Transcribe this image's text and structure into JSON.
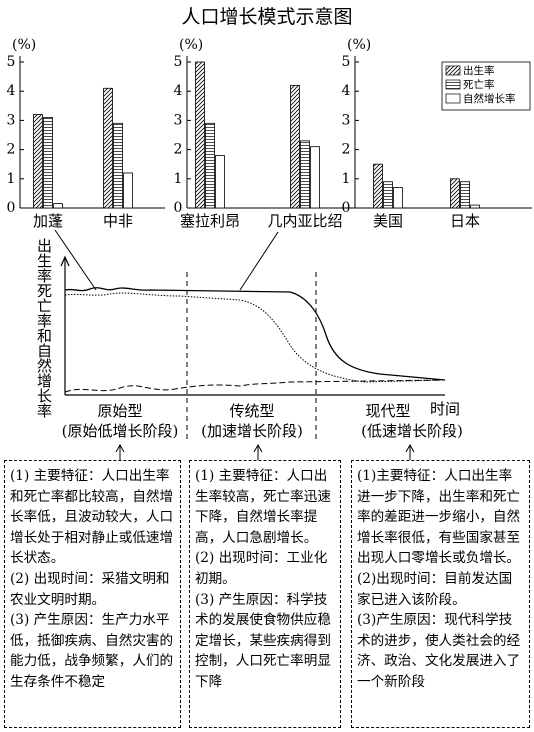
{
  "title": "人口增长模式示意图",
  "chart_data": [
    {
      "type": "bar",
      "ylabel": "(%)",
      "ylim": [
        0,
        5
      ],
      "yticks": [
        0,
        1,
        2,
        3,
        4,
        5
      ],
      "categories": [
        "加蓬",
        "中非"
      ],
      "series": [
        {
          "pattern": "diagonal",
          "values": [
            3.2,
            4.1
          ]
        },
        {
          "pattern": "horizontal",
          "values": [
            3.1,
            2.9
          ]
        },
        {
          "pattern": "none",
          "values": [
            0.15,
            1.2
          ]
        }
      ]
    },
    {
      "type": "bar",
      "ylabel": "(%)",
      "ylim": [
        0,
        5
      ],
      "yticks": [
        0,
        1,
        2,
        3,
        4,
        5
      ],
      "categories": [
        "塞拉利昂",
        "几内亚比绍"
      ],
      "series": [
        {
          "pattern": "diagonal",
          "values": [
            5.0,
            4.2
          ]
        },
        {
          "pattern": "horizontal",
          "values": [
            2.9,
            2.3
          ]
        },
        {
          "pattern": "none",
          "values": [
            1.8,
            2.1
          ]
        }
      ]
    },
    {
      "type": "bar",
      "ylabel": "(%)",
      "ylim": [
        0,
        5
      ],
      "yticks": [
        0,
        1,
        2,
        3,
        4,
        5
      ],
      "categories": [
        "美国",
        "日本"
      ],
      "legend": "top-right",
      "series": [
        {
          "name": "出生率",
          "pattern": "diagonal",
          "values": [
            1.5,
            1.0
          ]
        },
        {
          "name": "死亡率",
          "pattern": "horizontal",
          "values": [
            0.9,
            0.9
          ]
        },
        {
          "name": "自然增长率",
          "pattern": "none",
          "values": [
            0.7,
            0.1
          ]
        }
      ]
    }
  ],
  "diagram": {
    "y_label": "出生率死亡率和自然增长率",
    "x_label": "时间",
    "stages": [
      {
        "name": "原始型",
        "phase": "(原始低增长阶段)"
      },
      {
        "name": "传统型",
        "phase": "(加速增长阶段)"
      },
      {
        "name": "现代型",
        "phase": "(低速增长阶段)"
      }
    ]
  },
  "boxes": [
    {
      "lines": [
        "(1) 主要特征：人口出生率和死亡率都比较高，自然增长率低，且波动较大，人口增长处于相对静止或低速增长状态。",
        "(2) 出现时间：采猎文明和农业文明时期。",
        "(3) 产生原因：生产力水平低，抵御疾病、自然灾害的能力低，战争频繁，人们的生存条件不稳定"
      ]
    },
    {
      "lines": [
        "(1) 主要特征：人口出生率较高，死亡率迅速下降，自然增长率提高，人口急剧增长。",
        "(2) 出现时间：工业化初期。",
        "(3) 产生原因：科学技术的发展使食物供应稳定增长，某些疾病得到控制，人口死亡率明显下降"
      ]
    },
    {
      "lines": [
        "(1)主要特征：人口出生率进一步下降，出生率和死亡率的差距进一步缩小，自然增长率很低，有些国家甚至出现人口零增长或负增长。",
        "(2)出现时间：目前发达国家已进入该阶段。",
        "(3)产生原因：现代科学技术的进步，使人类社会的经济、政治、文化发展进入了一个新阶段"
      ]
    }
  ]
}
